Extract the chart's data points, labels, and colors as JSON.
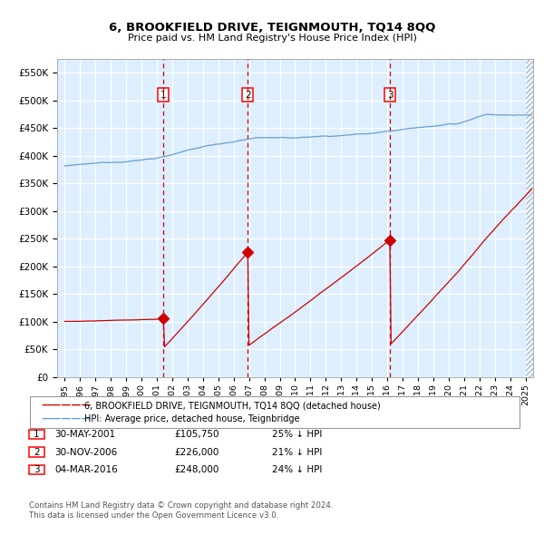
{
  "title": "6, BROOKFIELD DRIVE, TEIGNMOUTH, TQ14 8QQ",
  "subtitle": "Price paid vs. HM Land Registry's House Price Index (HPI)",
  "legend_line1": "6, BROOKFIELD DRIVE, TEIGNMOUTH, TQ14 8QQ (detached house)",
  "legend_line2": "HPI: Average price, detached house, Teignbridge",
  "footer_line1": "Contains HM Land Registry data © Crown copyright and database right 2024.",
  "footer_line2": "This data is licensed under the Open Government Licence v3.0.",
  "transactions": [
    {
      "num": 1,
      "date": "30-MAY-2001",
      "price": 105750,
      "pct": "25%",
      "dir": "↓"
    },
    {
      "num": 2,
      "date": "30-NOV-2006",
      "price": 226000,
      "pct": "21%",
      "dir": "↓"
    },
    {
      "num": 3,
      "date": "04-MAR-2016",
      "price": 248000,
      "pct": "24%",
      "dir": "↓"
    }
  ],
  "sale_dates_decimal": [
    2001.41,
    2006.91,
    2016.17
  ],
  "sale_prices": [
    105750,
    226000,
    248000
  ],
  "hpi_color": "#6699cc",
  "price_color": "#cc0000",
  "dashed_color": "#cc0000",
  "bg_color": "#ddeeff",
  "hatch_color": "#bbccdd",
  "ylim": [
    0,
    575000
  ],
  "yticks": [
    0,
    50000,
    100000,
    150000,
    200000,
    250000,
    300000,
    350000,
    400000,
    450000,
    500000,
    550000
  ],
  "xlim_start": 1994.5,
  "xlim_end": 2025.5
}
